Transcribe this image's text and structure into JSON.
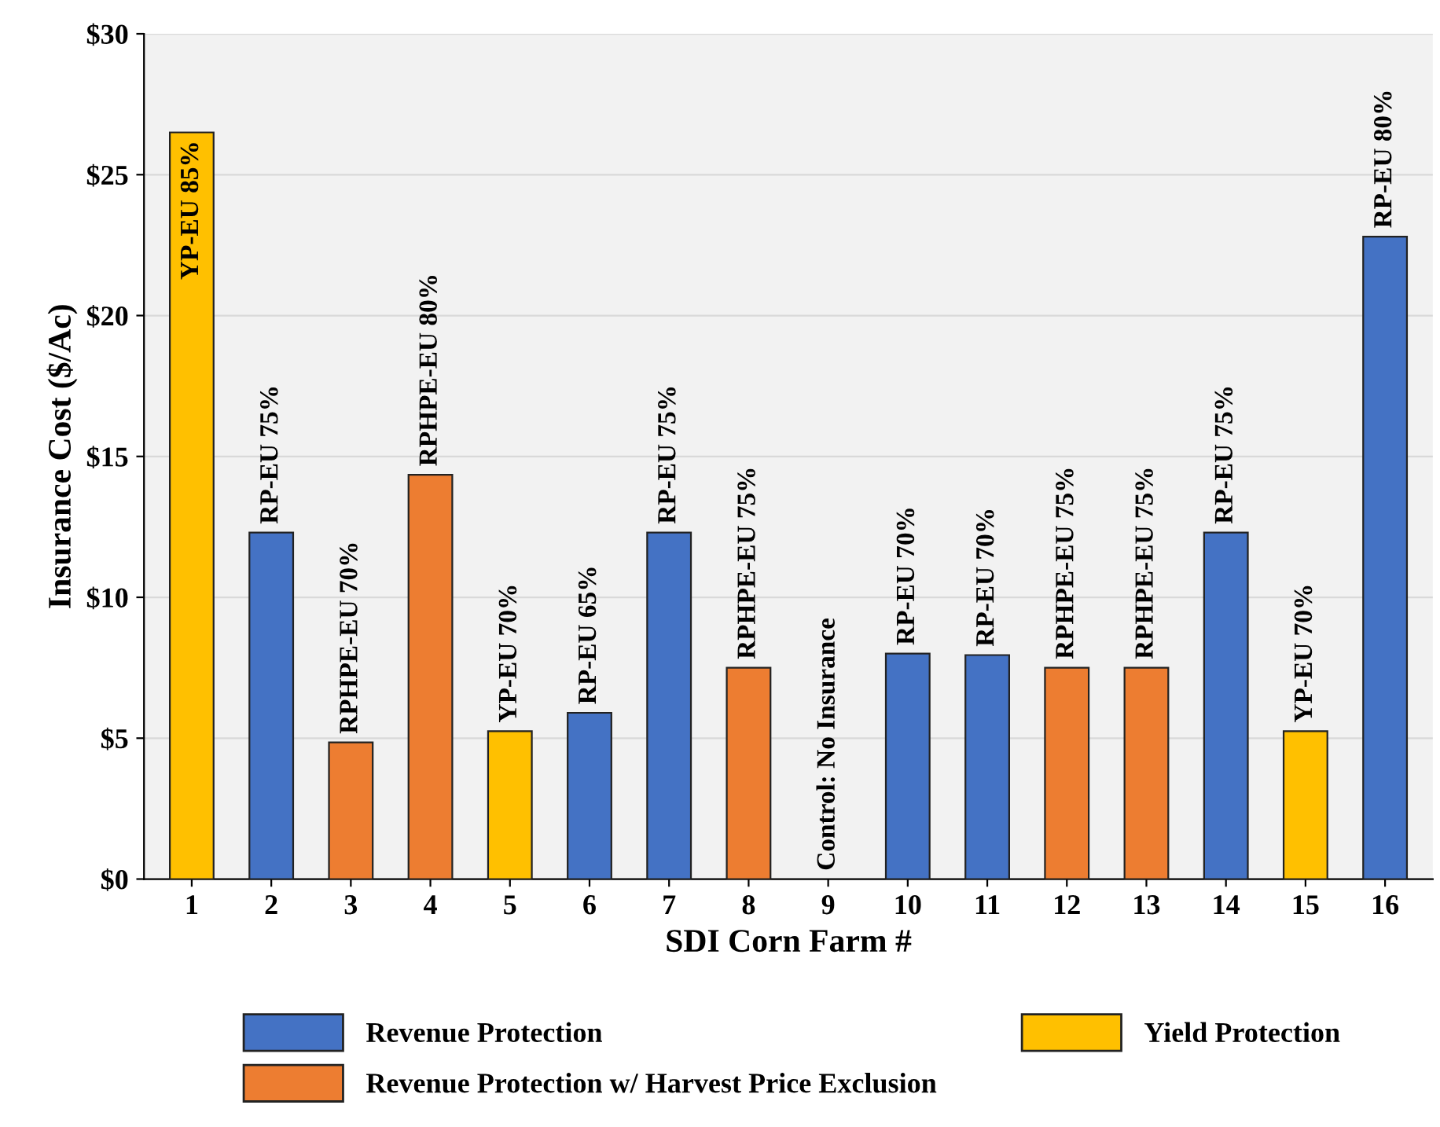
{
  "chart_data": {
    "type": "bar",
    "stacked": true,
    "xlabel": "SDI Corn Farm #",
    "ylabel": "Insurance Cost ($/Ac)",
    "categories": [
      "1",
      "2",
      "3",
      "4",
      "5",
      "6",
      "7",
      "8",
      "9",
      "10",
      "11",
      "12",
      "13",
      "14",
      "15",
      "16"
    ],
    "series": [
      {
        "name": "Revenue Protection",
        "color": "#4472c4",
        "values": [
          null,
          12.3,
          null,
          null,
          null,
          5.9,
          12.3,
          null,
          null,
          8.0,
          7.95,
          null,
          null,
          12.3,
          null,
          22.8
        ]
      },
      {
        "name": "Yield Protection",
        "color": "#ffc000",
        "values": [
          26.5,
          null,
          null,
          null,
          5.25,
          null,
          null,
          null,
          null,
          null,
          null,
          null,
          null,
          null,
          5.25,
          null
        ]
      },
      {
        "name": "Revenue Protection w/ Harvest Price Exclusion",
        "color": "#ed7d31",
        "values": [
          null,
          null,
          4.85,
          14.35,
          null,
          null,
          null,
          7.5,
          null,
          null,
          null,
          7.5,
          7.5,
          null,
          null,
          null
        ]
      }
    ],
    "ylim": [
      0,
      30
    ],
    "yticks": [
      {
        "value": 0,
        "label": "$0"
      },
      {
        "value": 5,
        "label": "$5"
      },
      {
        "value": 10,
        "label": "$10"
      },
      {
        "value": 15,
        "label": "$15"
      },
      {
        "value": 20,
        "label": "$20"
      },
      {
        "value": 25,
        "label": "$25"
      },
      {
        "value": 30,
        "label": "$30"
      }
    ],
    "grid": "y",
    "legend": "bottom",
    "annotations": [
      {
        "text": "YP-EU 85%",
        "x": "1",
        "y": 26.5
      },
      {
        "text": "RP-EU 75%",
        "x": "2",
        "y": 12.3
      },
      {
        "text": "RPHPE-EU 70%",
        "x": "3",
        "y": 4.85
      },
      {
        "text": "RPHPE-EU 80%",
        "x": "4",
        "y": 14.35
      },
      {
        "text": "YP-EU 70%",
        "x": "5",
        "y": 5.25
      },
      {
        "text": "RP-EU 65%",
        "x": "6",
        "y": 5.9
      },
      {
        "text": "RP-EU 75%",
        "x": "7",
        "y": 12.3
      },
      {
        "text": "RPHPE-EU 75%",
        "x": "8",
        "y": 7.5
      },
      "Control: No Insurance",
      {
        "text": "RP-EU 70%",
        "x": "10",
        "y": 8.0
      },
      {
        "text": "RP-EU 70%",
        "x": "11",
        "y": 7.95
      },
      {
        "text": "RPHPE-EU 75%",
        "x": "12",
        "y": 7.5
      },
      {
        "text": "RPHPE-EU 75%",
        "x": "13",
        "y": 7.5
      },
      {
        "text": "RP-EU 75%",
        "x": "14",
        "y": 12.3
      },
      {
        "text": "YP-EU 70%",
        "x": "15",
        "y": 5.25
      },
      {
        "text": "RP-EU 80%",
        "x": "16",
        "y": 22.8
      }
    ]
  }
}
